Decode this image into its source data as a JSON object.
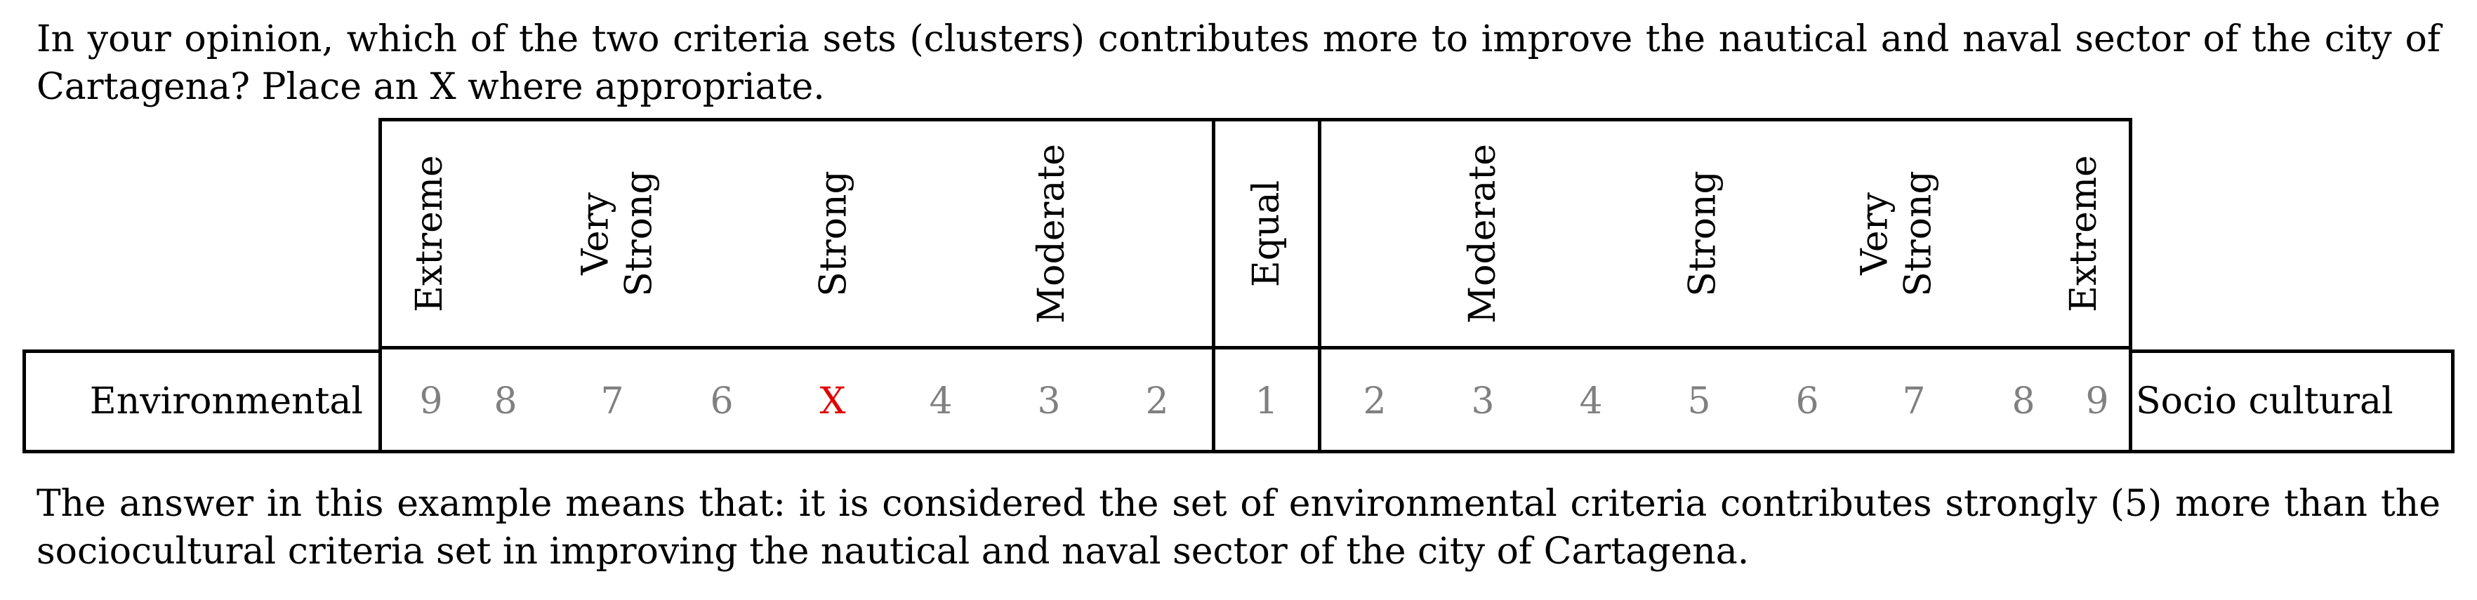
{
  "question": "In your opinion, which of the two criteria sets (clusters) contributes more to improve the nautical and naval sector of the city of Cartagena? Place an X where appropriate.",
  "explanation": "The answer in this example means that: it is considered the set of environmental criteria contributes strongly (5) more than the sociocultural criteria set in improving the nautical and naval sector of the city of Cartagena.",
  "table": {
    "left_label": "Environmental",
    "right_label": "Socio cultural",
    "headers": {
      "extreme_left": "Extreme",
      "very_strong_left": "Very\nStrong",
      "strong_left": "Strong",
      "moderate_left": "Moderate",
      "equal": "Equal",
      "moderate_right": "Moderate",
      "strong_right": "Strong",
      "very_strong_right": "Very\nStrong",
      "extreme_right": "Extreme"
    },
    "scale": [
      "9",
      "8",
      "7",
      "6",
      "X",
      "4",
      "3",
      "2",
      "1",
      "2",
      "3",
      "4",
      "5",
      "6",
      "7",
      "8",
      "9"
    ],
    "selected_index": 4,
    "mark_color": "#e00000",
    "number_color": "#808080"
  }
}
